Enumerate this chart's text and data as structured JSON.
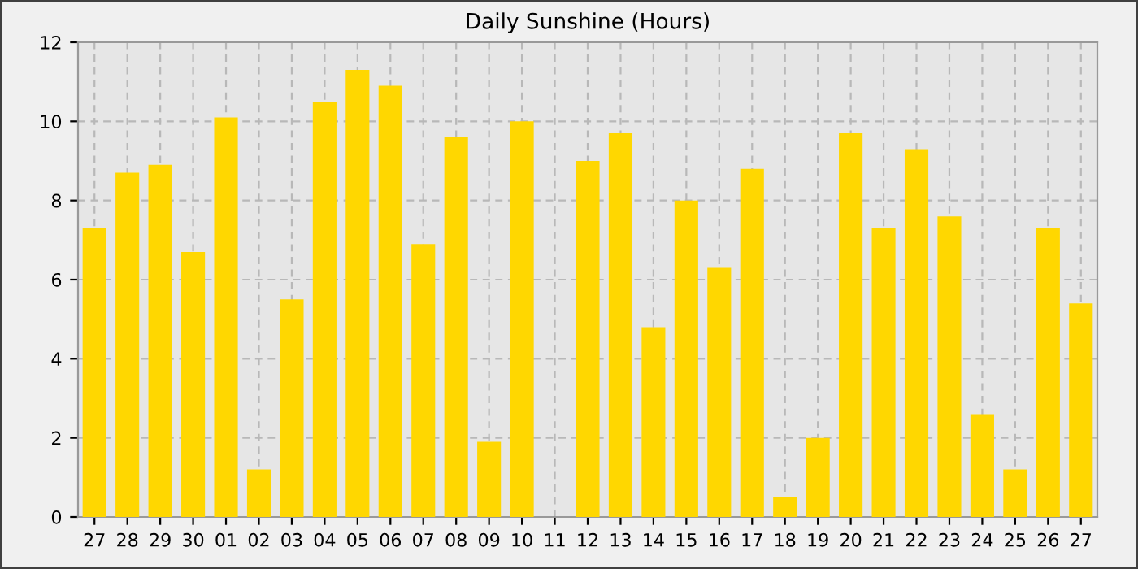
{
  "chart_data": {
    "type": "bar",
    "title": "Daily Sunshine (Hours)",
    "categories": [
      "27",
      "28",
      "29",
      "30",
      "01",
      "02",
      "03",
      "04",
      "05",
      "06",
      "07",
      "08",
      "09",
      "10",
      "11",
      "12",
      "13",
      "14",
      "15",
      "16",
      "17",
      "18",
      "19",
      "20",
      "21",
      "22",
      "23",
      "24",
      "25",
      "26",
      "27"
    ],
    "values": [
      7.3,
      8.7,
      8.9,
      6.7,
      10.1,
      1.2,
      5.5,
      10.5,
      11.3,
      10.9,
      6.9,
      9.6,
      1.9,
      10.0,
      0,
      9.0,
      9.7,
      4.8,
      8.0,
      6.3,
      8.8,
      0.5,
      2.0,
      9.7,
      7.3,
      9.3,
      7.6,
      2.6,
      1.2,
      7.3,
      5.4
    ],
    "color": "#ffd700",
    "ylim": [
      0,
      12
    ],
    "yticks": [
      0,
      2,
      4,
      6,
      8,
      10,
      12
    ],
    "grid": true
  }
}
